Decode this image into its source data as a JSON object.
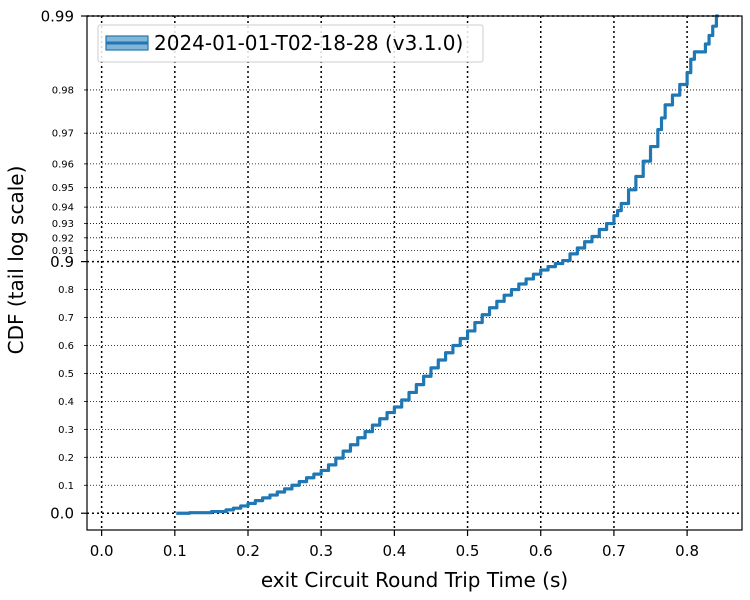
{
  "chart_data": {
    "type": "line",
    "title": "",
    "xlabel": "exit Circuit Round Trip Time (s)",
    "ylabel": "CDF (tail log scale)",
    "y_scale": "tail-log",
    "xlim": [
      -0.02,
      0.875
    ],
    "ylim": [
      -0.06,
      0.99
    ],
    "x_ticks": [
      0.0,
      0.1,
      0.2,
      0.3,
      0.4,
      0.5,
      0.6,
      0.7,
      0.8
    ],
    "x_tick_labels": [
      "0.0",
      "0.1",
      "0.2",
      "0.3",
      "0.4",
      "0.5",
      "0.6",
      "0.7",
      "0.8"
    ],
    "y_major_ticks": [
      0.0,
      0.9,
      0.99
    ],
    "y_major_tick_labels": [
      "0.0",
      "0.9",
      "0.99"
    ],
    "y_minor_ticks": [
      0.1,
      0.2,
      0.3,
      0.4,
      0.5,
      0.6,
      0.7,
      0.8,
      0.91,
      0.92,
      0.93,
      0.94,
      0.95,
      0.96,
      0.97,
      0.98
    ],
    "y_minor_tick_labels": [
      "0.1",
      "0.2",
      "0.3",
      "0.4",
      "0.5",
      "0.6",
      "0.7",
      "0.8",
      "0.91",
      "0.92",
      "0.93",
      "0.94",
      "0.95",
      "0.96",
      "0.97",
      "0.98"
    ],
    "grid": true,
    "legend_position": "top-left",
    "series": [
      {
        "name": "2024-01-01-T02-18-28 (v3.1.0)",
        "color": "#1f77b4",
        "x": [
          0.102,
          0.12,
          0.15,
          0.17,
          0.18,
          0.19,
          0.2,
          0.21,
          0.22,
          0.23,
          0.24,
          0.25,
          0.26,
          0.27,
          0.28,
          0.29,
          0.3,
          0.31,
          0.32,
          0.33,
          0.34,
          0.35,
          0.36,
          0.37,
          0.38,
          0.39,
          0.4,
          0.41,
          0.42,
          0.43,
          0.44,
          0.45,
          0.46,
          0.47,
          0.48,
          0.49,
          0.5,
          0.51,
          0.52,
          0.53,
          0.54,
          0.55,
          0.56,
          0.57,
          0.58,
          0.59,
          0.6,
          0.61,
          0.62,
          0.63,
          0.64,
          0.65,
          0.66,
          0.67,
          0.68,
          0.69,
          0.7,
          0.705,
          0.71,
          0.72,
          0.73,
          0.74,
          0.75,
          0.76,
          0.765,
          0.77,
          0.78,
          0.79,
          0.8,
          0.805,
          0.81,
          0.825,
          0.83,
          0.835,
          0.84,
          0.843
        ],
        "y": [
          0.0,
          0.002,
          0.006,
          0.012,
          0.018,
          0.026,
          0.035,
          0.045,
          0.055,
          0.065,
          0.076,
          0.087,
          0.1,
          0.113,
          0.127,
          0.14,
          0.153,
          0.173,
          0.197,
          0.222,
          0.245,
          0.27,
          0.292,
          0.315,
          0.338,
          0.36,
          0.38,
          0.405,
          0.432,
          0.46,
          0.49,
          0.52,
          0.548,
          0.574,
          0.6,
          0.625,
          0.652,
          0.682,
          0.71,
          0.735,
          0.758,
          0.78,
          0.8,
          0.82,
          0.838,
          0.855,
          0.87,
          0.882,
          0.893,
          0.901,
          0.907,
          0.912,
          0.917,
          0.921,
          0.926,
          0.93,
          0.935,
          0.938,
          0.942,
          0.949,
          0.955,
          0.961,
          0.966,
          0.971,
          0.974,
          0.977,
          0.979,
          0.981,
          0.983,
          0.985,
          0.986,
          0.987,
          0.988,
          0.989,
          0.99,
          0.99
        ]
      }
    ]
  }
}
